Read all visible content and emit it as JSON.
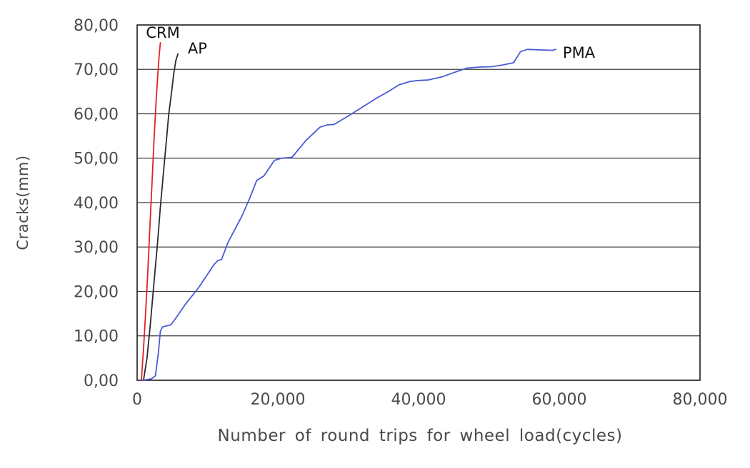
{
  "figure": {
    "background": "#ffffff"
  },
  "chart_data": {
    "type": "line",
    "title": "",
    "xlabel": "Number of round trips for wheel load(cycles)",
    "ylabel": "Cracks(mm)",
    "xlim": [
      0,
      80000
    ],
    "ylim": [
      0,
      80
    ],
    "x_ticks": [
      0,
      20000,
      40000,
      60000,
      80000
    ],
    "x_tick_labels": [
      "0",
      "20,000",
      "40,000",
      "60,000",
      "80,000"
    ],
    "y_ticks": [
      0,
      10,
      20,
      30,
      40,
      50,
      60,
      70,
      80
    ],
    "y_tick_labels": [
      "0,00",
      "10,00",
      "20,00",
      "30,00",
      "40,00",
      "50,00",
      "60,00",
      "70,00",
      "80,00"
    ],
    "grid": "horizontal",
    "legend_position": "inline-labels",
    "axis_color": "#1a1a1a",
    "grid_color": "#3c3c3c",
    "tick_text_color": "#4a4a4a",
    "label_text_color": "#111111",
    "series": [
      {
        "name": "CRM",
        "color": "#e02222",
        "label_x": 1250,
        "label_y": 78.3,
        "x": [
          600,
          900,
          1200,
          1500,
          1800,
          2100,
          2400,
          2700,
          2900,
          3100,
          3300
        ],
        "y": [
          0,
          7,
          15,
          24,
          34,
          44,
          54,
          63,
          68,
          72.5,
          76
        ]
      },
      {
        "name": "AP",
        "color": "#2b2b2b",
        "label_x": 7200,
        "label_y": 74.8,
        "x": [
          900,
          1400,
          1900,
          2400,
          2900,
          3300,
          3700,
          4100,
          4500,
          4900,
          5200,
          5500,
          5800
        ],
        "y": [
          0,
          5,
          13,
          22,
          31,
          39,
          46,
          53,
          60,
          65,
          69,
          72,
          73.5
        ]
      },
      {
        "name": "PMA",
        "color": "#4a5ad6",
        "label_x": 60500,
        "label_y": 73.8,
        "x": [
          700,
          2000,
          2600,
          3000,
          3300,
          3600,
          4800,
          5500,
          6800,
          8800,
          10900,
          11500,
          12000,
          12900,
          14900,
          16000,
          17000,
          18000,
          19500,
          20500,
          22000,
          24000,
          26000,
          27000,
          28000,
          30000,
          32000,
          34000,
          35700,
          37200,
          38800,
          40000,
          41300,
          43300,
          45400,
          46900,
          48500,
          50400,
          52000,
          53500,
          54500,
          55500,
          57000,
          59000,
          59500
        ],
        "y": [
          0,
          0.3,
          1,
          6,
          11,
          12,
          12.5,
          14,
          17,
          21,
          26,
          27,
          27.2,
          31,
          37,
          41,
          45,
          46,
          49.5,
          50,
          50.2,
          54,
          57,
          57.5,
          57.6,
          59.5,
          61.5,
          63.5,
          65,
          66.5,
          67.3,
          67.5,
          67.6,
          68.3,
          69.5,
          70.3,
          70.5,
          70.6,
          71,
          71.5,
          74,
          74.5,
          74.4,
          74.3,
          74.5
        ]
      }
    ]
  }
}
